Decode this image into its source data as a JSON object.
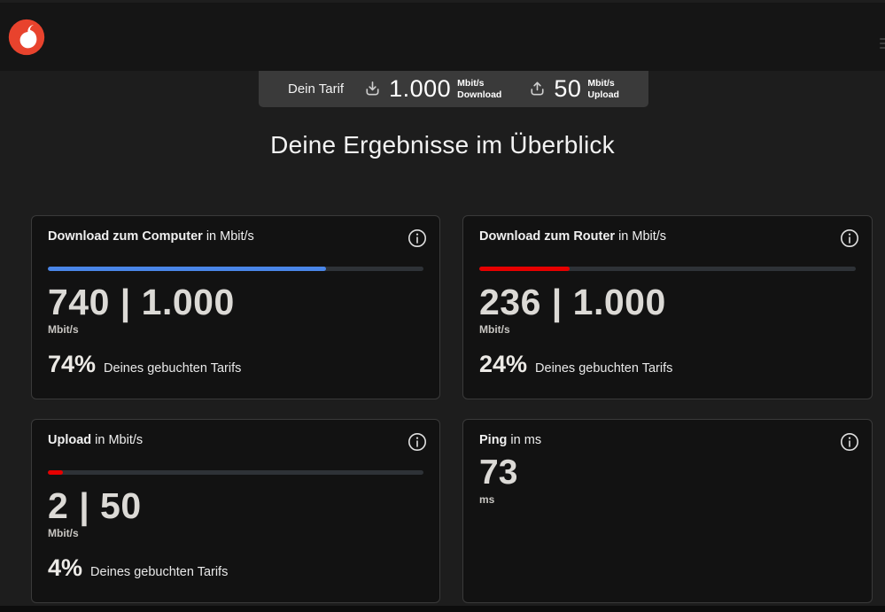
{
  "colors": {
    "accent_red": "#e60000",
    "accent_blue": "#4a86e8",
    "logo_red": "#e8432d"
  },
  "tariff_bar": {
    "label": "Dein Tarif",
    "download": {
      "value": "1.000",
      "unit": "Mbit/s",
      "direction": "Download"
    },
    "upload": {
      "value": "50",
      "unit": "Mbit/s",
      "direction": "Upload"
    }
  },
  "page_title": "Deine Ergebnisse im Überblick",
  "cards": [
    {
      "title_bold": "Download zum Computer",
      "title_suffix": "in Mbit/s",
      "value": "740 | 1.000",
      "unit": "Mbit/s",
      "percent": "74%",
      "percent_label": "Deines gebuchten Tarifs",
      "bar": {
        "fill_percent": 74,
        "color": "#4a86e8"
      }
    },
    {
      "title_bold": "Download zum Router",
      "title_suffix": "in Mbit/s",
      "value": "236 | 1.000",
      "unit": "Mbit/s",
      "percent": "24%",
      "percent_label": "Deines gebuchten Tarifs",
      "bar": {
        "fill_percent": 24,
        "color": "#e60000"
      }
    },
    {
      "title_bold": "Upload",
      "title_suffix": "in Mbit/s",
      "value": "2 | 50",
      "unit": "Mbit/s",
      "percent": "4%",
      "percent_label": "Deines gebuchten Tarifs",
      "bar": {
        "fill_percent": 4,
        "color": "#e60000"
      }
    },
    {
      "title_bold": "Ping",
      "title_suffix": "in ms",
      "value": "73",
      "unit": "ms"
    }
  ]
}
